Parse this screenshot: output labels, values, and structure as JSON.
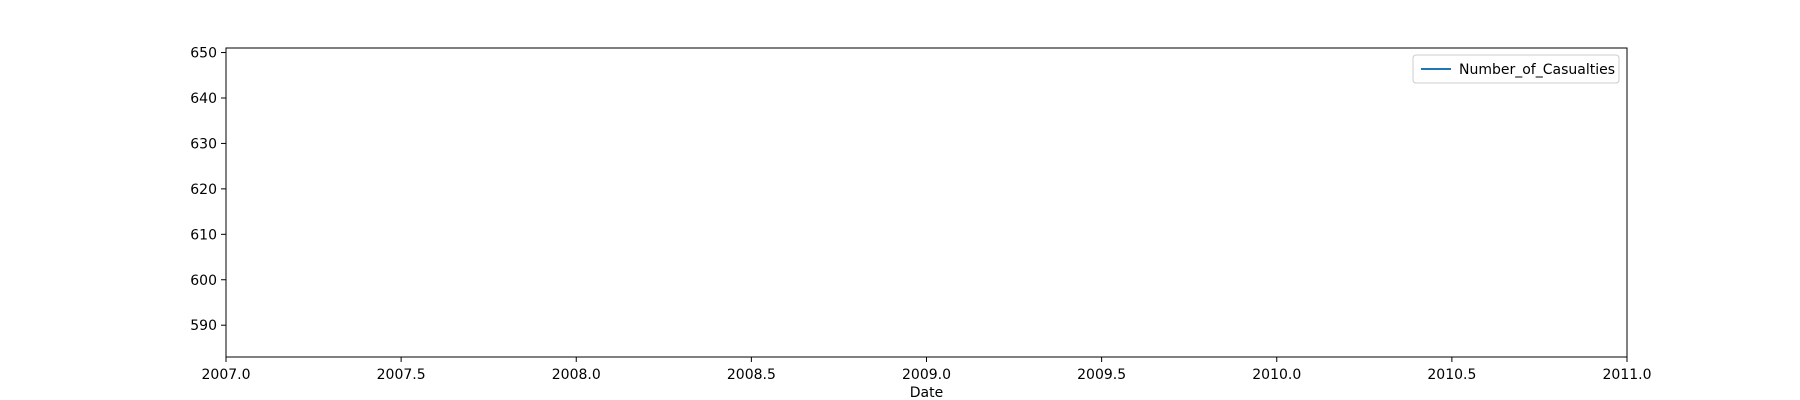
{
  "chart_data": {
    "type": "line",
    "title": "",
    "xlabel": "Date",
    "ylabel": "",
    "xlim": [
      2007.0,
      2011.0
    ],
    "ylim": [
      583,
      651
    ],
    "xticks": [
      "2007.0",
      "2007.5",
      "2008.0",
      "2008.5",
      "2009.0",
      "2009.5",
      "2010.0",
      "2010.5",
      "2011.0"
    ],
    "yticks": [
      "590",
      "600",
      "610",
      "620",
      "630",
      "640",
      "650"
    ],
    "grid": false,
    "legend": {
      "placement": "upper-right"
    },
    "series": [
      {
        "name": "Number_of_Casualties",
        "color": "#1f77b4",
        "x": [],
        "y": []
      }
    ]
  }
}
